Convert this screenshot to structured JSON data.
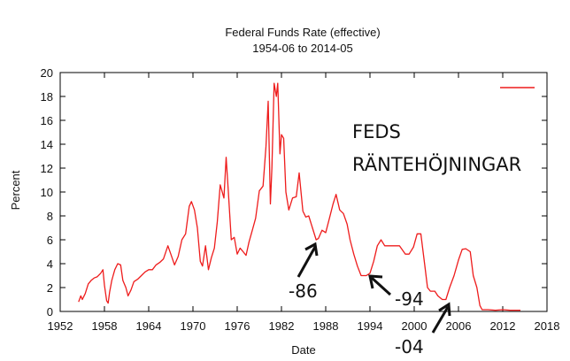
{
  "chart_data": {
    "type": "line",
    "title": "Federal Funds Rate (effective)",
    "subtitle": "1954-06 to 2014-05",
    "xlabel": "Date",
    "ylabel": "Percent",
    "xlim": [
      1952,
      2018
    ],
    "ylim": [
      0,
      20
    ],
    "xticks": [
      1952,
      1958,
      1964,
      1970,
      1976,
      1982,
      1988,
      1994,
      2000,
      2006,
      2012,
      2018
    ],
    "yticks": [
      0,
      2,
      4,
      6,
      8,
      10,
      12,
      14,
      16,
      18,
      20
    ],
    "grid": false,
    "legend": {
      "placement": "top-right",
      "entries": [
        {
          "name": "",
          "color": "#ee1c1c"
        }
      ]
    },
    "series": [
      {
        "name": "",
        "color": "#ee1c1c",
        "points": [
          [
            1954.5,
            0.8
          ],
          [
            1954.8,
            1.3
          ],
          [
            1955.0,
            1.0
          ],
          [
            1955.4,
            1.5
          ],
          [
            1955.8,
            2.3
          ],
          [
            1956.2,
            2.6
          ],
          [
            1956.6,
            2.8
          ],
          [
            1957.0,
            2.9
          ],
          [
            1957.5,
            3.2
          ],
          [
            1957.8,
            3.5
          ],
          [
            1958.0,
            2.2
          ],
          [
            1958.3,
            0.9
          ],
          [
            1958.5,
            0.7
          ],
          [
            1958.7,
            1.6
          ],
          [
            1959.0,
            2.6
          ],
          [
            1959.4,
            3.5
          ],
          [
            1959.8,
            4.0
          ],
          [
            1960.2,
            3.9
          ],
          [
            1960.5,
            2.6
          ],
          [
            1960.9,
            2.0
          ],
          [
            1961.2,
            1.3
          ],
          [
            1961.6,
            1.8
          ],
          [
            1962.0,
            2.5
          ],
          [
            1962.5,
            2.7
          ],
          [
            1963.0,
            3.0
          ],
          [
            1963.5,
            3.3
          ],
          [
            1964.0,
            3.5
          ],
          [
            1964.5,
            3.5
          ],
          [
            1965.0,
            3.9
          ],
          [
            1965.5,
            4.1
          ],
          [
            1966.0,
            4.4
          ],
          [
            1966.6,
            5.5
          ],
          [
            1967.0,
            4.8
          ],
          [
            1967.5,
            3.9
          ],
          [
            1968.0,
            4.6
          ],
          [
            1968.5,
            6.0
          ],
          [
            1969.0,
            6.5
          ],
          [
            1969.5,
            8.8
          ],
          [
            1969.8,
            9.2
          ],
          [
            1970.2,
            8.5
          ],
          [
            1970.6,
            7.0
          ],
          [
            1971.0,
            4.2
          ],
          [
            1971.3,
            3.8
          ],
          [
            1971.7,
            5.5
          ],
          [
            1972.1,
            3.5
          ],
          [
            1972.5,
            4.5
          ],
          [
            1972.9,
            5.3
          ],
          [
            1973.3,
            7.5
          ],
          [
            1973.7,
            10.6
          ],
          [
            1974.2,
            9.5
          ],
          [
            1974.5,
            12.9
          ],
          [
            1974.8,
            10.0
          ],
          [
            1975.2,
            6.0
          ],
          [
            1975.6,
            6.2
          ],
          [
            1976.0,
            4.8
          ],
          [
            1976.4,
            5.3
          ],
          [
            1976.8,
            5.0
          ],
          [
            1977.2,
            4.7
          ],
          [
            1977.6,
            5.8
          ],
          [
            1978.0,
            6.7
          ],
          [
            1978.5,
            7.8
          ],
          [
            1979.0,
            10.1
          ],
          [
            1979.5,
            10.5
          ],
          [
            1979.9,
            13.8
          ],
          [
            1980.2,
            17.6
          ],
          [
            1980.5,
            9.0
          ],
          [
            1980.7,
            12.0
          ],
          [
            1981.0,
            19.1
          ],
          [
            1981.3,
            18.0
          ],
          [
            1981.5,
            19.1
          ],
          [
            1981.8,
            13.2
          ],
          [
            1982.0,
            14.8
          ],
          [
            1982.3,
            14.5
          ],
          [
            1982.6,
            10.0
          ],
          [
            1983.0,
            8.5
          ],
          [
            1983.5,
            9.5
          ],
          [
            1984.0,
            9.6
          ],
          [
            1984.4,
            11.6
          ],
          [
            1984.9,
            8.4
          ],
          [
            1985.3,
            7.9
          ],
          [
            1985.7,
            8.0
          ],
          [
            1986.2,
            7.0
          ],
          [
            1986.7,
            6.0
          ],
          [
            1987.0,
            6.1
          ],
          [
            1987.5,
            6.8
          ],
          [
            1988.0,
            6.6
          ],
          [
            1988.5,
            7.8
          ],
          [
            1989.0,
            9.0
          ],
          [
            1989.4,
            9.8
          ],
          [
            1989.9,
            8.5
          ],
          [
            1990.4,
            8.2
          ],
          [
            1990.9,
            7.3
          ],
          [
            1991.3,
            6.0
          ],
          [
            1991.8,
            4.8
          ],
          [
            1992.3,
            3.8
          ],
          [
            1992.8,
            3.0
          ],
          [
            1993.5,
            3.0
          ],
          [
            1994.0,
            3.2
          ],
          [
            1994.5,
            4.2
          ],
          [
            1995.0,
            5.5
          ],
          [
            1995.5,
            6.0
          ],
          [
            1996.0,
            5.5
          ],
          [
            1997.0,
            5.5
          ],
          [
            1998.0,
            5.5
          ],
          [
            1998.8,
            4.8
          ],
          [
            1999.3,
            4.8
          ],
          [
            1999.9,
            5.4
          ],
          [
            2000.4,
            6.5
          ],
          [
            2000.9,
            6.5
          ],
          [
            2001.4,
            4.0
          ],
          [
            2001.8,
            2.0
          ],
          [
            2002.2,
            1.7
          ],
          [
            2002.8,
            1.7
          ],
          [
            2003.2,
            1.3
          ],
          [
            2003.8,
            1.0
          ],
          [
            2004.3,
            1.0
          ],
          [
            2004.8,
            2.0
          ],
          [
            2005.4,
            3.0
          ],
          [
            2006.0,
            4.3
          ],
          [
            2006.5,
            5.2
          ],
          [
            2007.0,
            5.25
          ],
          [
            2007.6,
            5.0
          ],
          [
            2008.0,
            3.0
          ],
          [
            2008.5,
            2.0
          ],
          [
            2008.9,
            0.5
          ],
          [
            2009.2,
            0.15
          ],
          [
            2010.0,
            0.15
          ],
          [
            2011.0,
            0.1
          ],
          [
            2012.0,
            0.15
          ],
          [
            2013.0,
            0.1
          ],
          [
            2014.4,
            0.1
          ]
        ]
      }
    ],
    "annotations": [
      "FEDS",
      "RÄNTEHÖJNINGAR",
      "-86",
      "-94",
      "-04"
    ]
  }
}
